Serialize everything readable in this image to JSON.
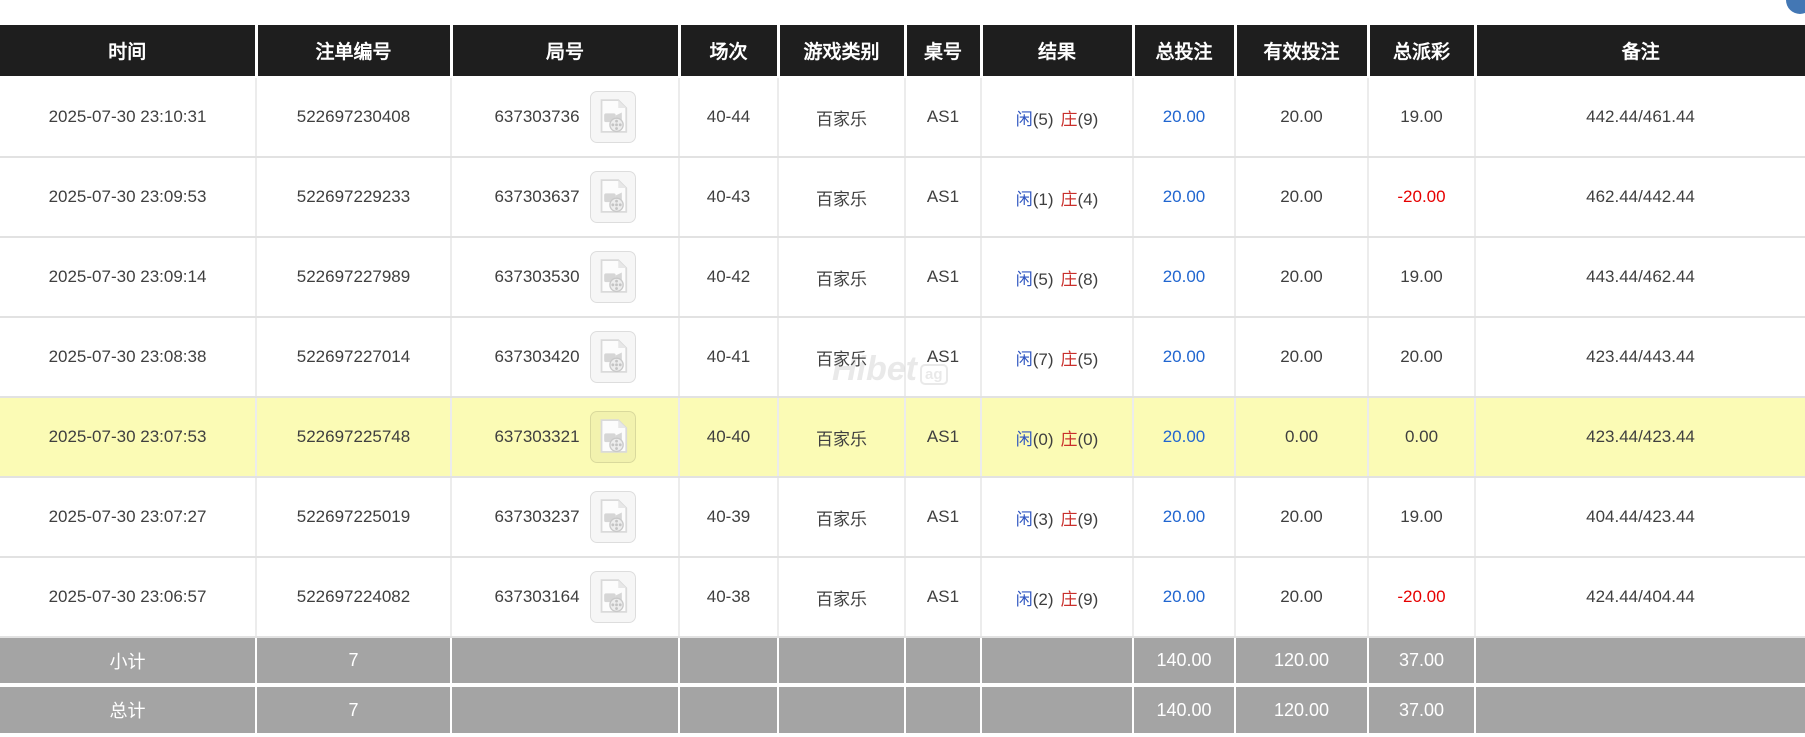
{
  "floating_button": {
    "color": "#4377b4"
  },
  "watermark": {
    "text": "Hibet",
    "suffix": "ag"
  },
  "colors": {
    "header_bg": "#1e1e1e",
    "row_highlight": "#fbfbb5",
    "footer_bg": "#a4a4a4",
    "player_blue": "#2f56c0",
    "banker_red": "#c9302c",
    "amount_blue": "#2166d0",
    "negative_red": "#e60000"
  },
  "table": {
    "header": {
      "labels": [
        "时间",
        "注单编号",
        "局号",
        "场次",
        "游戏类别",
        "桌号",
        "结果",
        "总投注",
        "有效投注",
        "总派彩",
        "备注"
      ]
    },
    "video_icon": "video-file-icon",
    "rows": [
      {
        "time": "2025-07-30 23:10:31",
        "bet_id": "522697230408",
        "round_no": "637303736",
        "session": "40-44",
        "game_type": "百家乐",
        "table_no": "AS1",
        "result": {
          "player_label": "闲",
          "player_count": "(5)",
          "banker_label": "庄",
          "banker_count": "(9)"
        },
        "total_bet": "20.00",
        "valid_bet": "20.00",
        "payout": "19.00",
        "note": "442.44/461.44",
        "highlighted": false
      },
      {
        "time": "2025-07-30 23:09:53",
        "bet_id": "522697229233",
        "round_no": "637303637",
        "session": "40-43",
        "game_type": "百家乐",
        "table_no": "AS1",
        "result": {
          "player_label": "闲",
          "player_count": "(1)",
          "banker_label": "庄",
          "banker_count": "(4)"
        },
        "total_bet": "20.00",
        "valid_bet": "20.00",
        "payout": "-20.00",
        "note": "462.44/442.44",
        "highlighted": false
      },
      {
        "time": "2025-07-30 23:09:14",
        "bet_id": "522697227989",
        "round_no": "637303530",
        "session": "40-42",
        "game_type": "百家乐",
        "table_no": "AS1",
        "result": {
          "player_label": "闲",
          "player_count": "(5)",
          "banker_label": "庄",
          "banker_count": "(8)"
        },
        "total_bet": "20.00",
        "valid_bet": "20.00",
        "payout": "19.00",
        "note": "443.44/462.44",
        "highlighted": false
      },
      {
        "time": "2025-07-30 23:08:38",
        "bet_id": "522697227014",
        "round_no": "637303420",
        "session": "40-41",
        "game_type": "百家乐",
        "table_no": "AS1",
        "result": {
          "player_label": "闲",
          "player_count": "(7)",
          "banker_label": "庄",
          "banker_count": "(5)"
        },
        "total_bet": "20.00",
        "valid_bet": "20.00",
        "payout": "20.00",
        "note": "423.44/443.44",
        "highlighted": false
      },
      {
        "time": "2025-07-30 23:07:53",
        "bet_id": "522697225748",
        "round_no": "637303321",
        "session": "40-40",
        "game_type": "百家乐",
        "table_no": "AS1",
        "result": {
          "player_label": "闲",
          "player_count": "(0)",
          "banker_label": "庄",
          "banker_count": "(0)"
        },
        "total_bet": "20.00",
        "valid_bet": "0.00",
        "payout": "0.00",
        "note": "423.44/423.44",
        "highlighted": true
      },
      {
        "time": "2025-07-30 23:07:27",
        "bet_id": "522697225019",
        "round_no": "637303237",
        "session": "40-39",
        "game_type": "百家乐",
        "table_no": "AS1",
        "result": {
          "player_label": "闲",
          "player_count": "(3)",
          "banker_label": "庄",
          "banker_count": "(9)"
        },
        "total_bet": "20.00",
        "valid_bet": "20.00",
        "payout": "19.00",
        "note": "404.44/423.44",
        "highlighted": false
      },
      {
        "time": "2025-07-30 23:06:57",
        "bet_id": "522697224082",
        "round_no": "637303164",
        "session": "40-38",
        "game_type": "百家乐",
        "table_no": "AS1",
        "result": {
          "player_label": "闲",
          "player_count": "(2)",
          "banker_label": "庄",
          "banker_count": "(9)"
        },
        "total_bet": "20.00",
        "valid_bet": "20.00",
        "payout": "-20.00",
        "note": "424.44/404.44",
        "highlighted": false
      }
    ],
    "footer": [
      {
        "label": "小计",
        "count": "7",
        "total_bet": "140.00",
        "valid_bet": "120.00",
        "payout": "37.00"
      },
      {
        "label": "总计",
        "count": "7",
        "total_bet": "140.00",
        "valid_bet": "120.00",
        "payout": "37.00"
      }
    ]
  }
}
